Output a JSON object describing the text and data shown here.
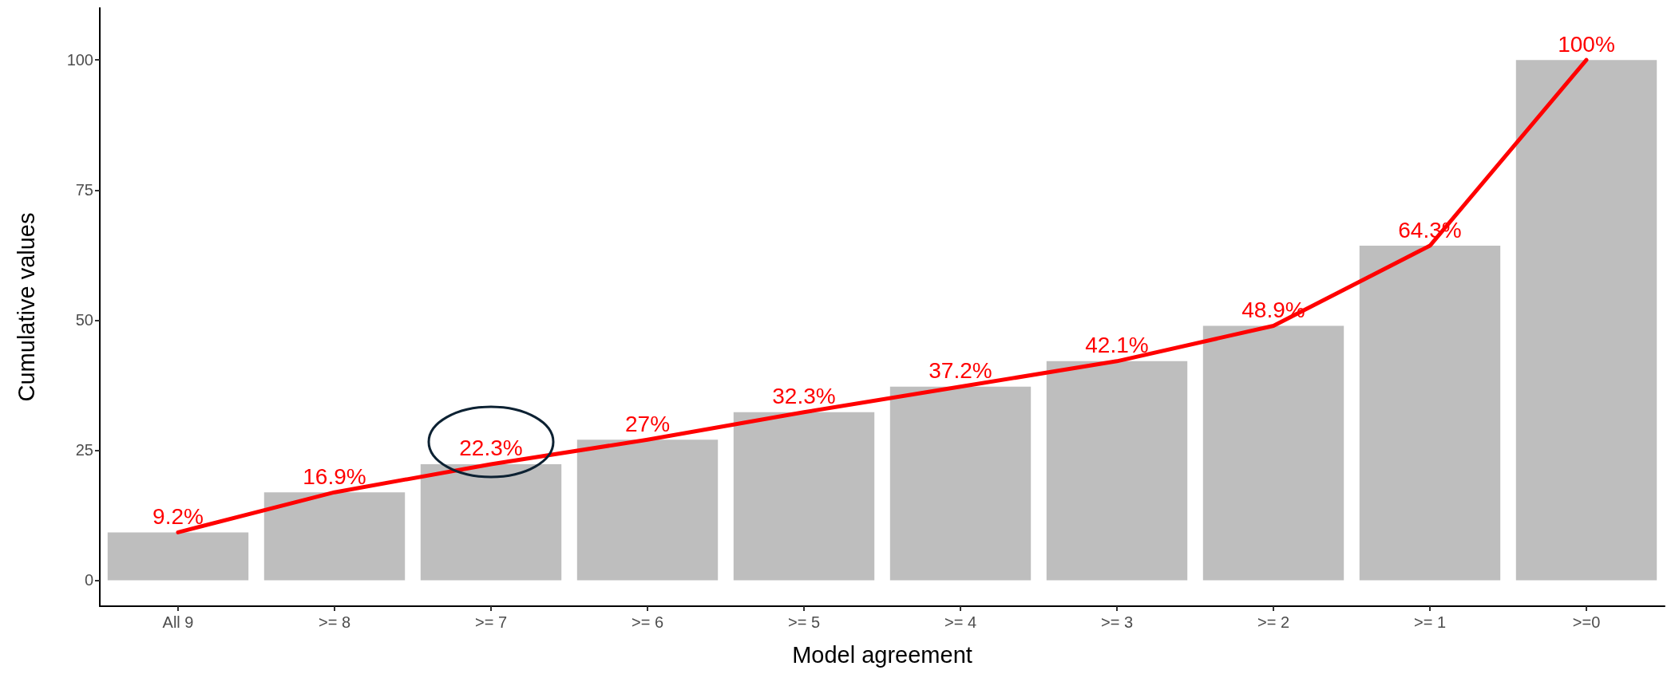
{
  "chart_data": {
    "type": "bar",
    "xlabel": "Model agreement",
    "ylabel": "Cumulative values",
    "categories": [
      "All 9",
      ">= 8",
      ">= 7",
      ">= 6",
      ">= 5",
      ">= 4",
      ">= 3",
      ">= 2",
      ">= 1",
      ">=0"
    ],
    "series": [
      {
        "color": "#bebebe",
        "values": [
          9.2,
          16.9,
          22.3,
          27,
          32.3,
          37.2,
          42.1,
          48.9,
          64.3,
          100
        ]
      },
      {
        "type": "line",
        "color": "#ff0000",
        "values": [
          9.2,
          16.9,
          22.3,
          27,
          32.3,
          37.2,
          42.1,
          48.9,
          64.3,
          100
        ],
        "value_labels": [
          "9.2%",
          "16.9%",
          "22.3%",
          "27%",
          "32.3%",
          "37.2%",
          "42.1%",
          "48.9%",
          "64.3%",
          "100%"
        ]
      }
    ],
    "ylim": [
      -5,
      110
    ],
    "yticks": [
      0,
      25,
      50,
      75,
      100
    ],
    "grid": false,
    "marker": "none",
    "line_style": "solid"
  }
}
